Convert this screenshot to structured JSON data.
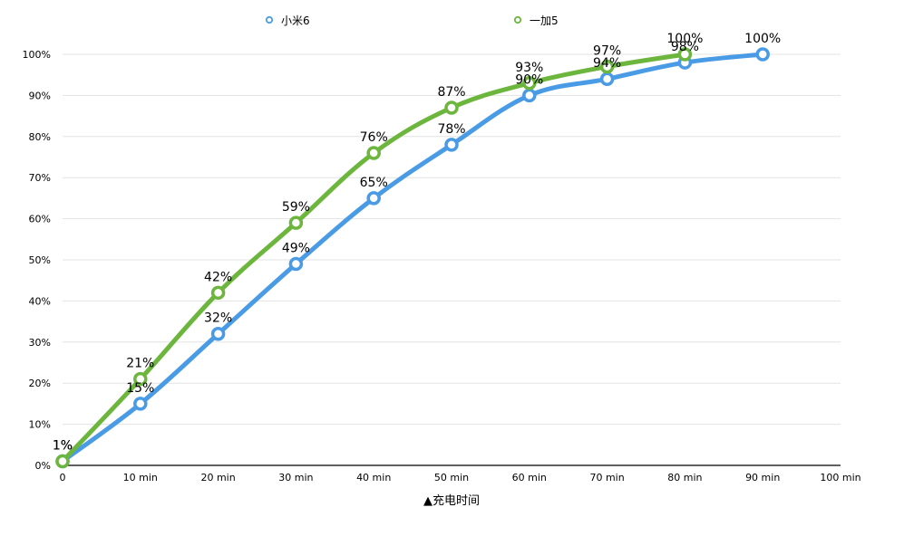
{
  "chart_data": {
    "type": "line",
    "title": "",
    "xlabel": "▲充电时间",
    "ylabel": "",
    "x": [
      0,
      10,
      20,
      30,
      40,
      50,
      60,
      70,
      80,
      90
    ],
    "x_tick_labels": [
      "0",
      "10 min",
      "20 min",
      "30 min",
      "40 min",
      "50 min",
      "60 min",
      "70 min",
      "80 min",
      "90 min",
      "100 min"
    ],
    "y_tick_labels": [
      "0%",
      "10%",
      "20%",
      "30%",
      "40%",
      "50%",
      "60%",
      "70%",
      "80%",
      "90%",
      "100%"
    ],
    "xlim": [
      0,
      100
    ],
    "ylim": [
      0,
      100
    ],
    "grid": true,
    "legend_position": "top-center",
    "series": [
      {
        "name": "小米6",
        "color": "#4a9be6",
        "x": [
          0,
          10,
          20,
          30,
          40,
          50,
          60,
          70,
          80,
          90
        ],
        "values": [
          1,
          15,
          32,
          49,
          65,
          78,
          90,
          94,
          98,
          100
        ],
        "labels": [
          "1%",
          "15%",
          "32%",
          "49%",
          "65%",
          "78%",
          "90%",
          "94%",
          "98%",
          "100%"
        ]
      },
      {
        "name": "一加5",
        "color": "#6db63e",
        "x": [
          0,
          10,
          20,
          30,
          40,
          50,
          60,
          70,
          80
        ],
        "values": [
          1,
          21,
          42,
          59,
          76,
          87,
          93,
          97,
          100
        ],
        "labels": [
          "1%",
          "21%",
          "42%",
          "59%",
          "76%",
          "87%",
          "93%",
          "97%",
          "100%"
        ]
      }
    ]
  }
}
